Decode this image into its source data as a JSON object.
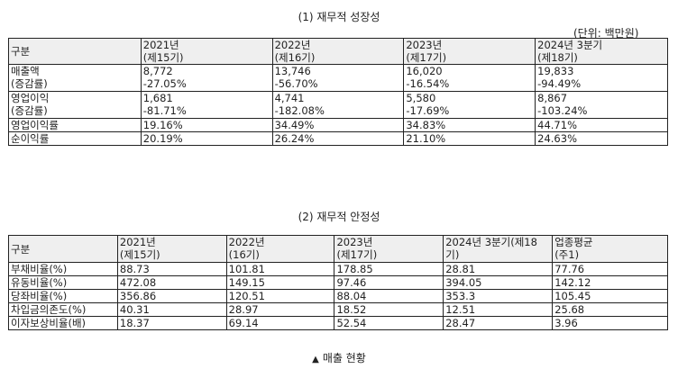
{
  "section1": {
    "title": "(1) 재무적 성장성",
    "unit": "(단위: 백만원)",
    "header": [
      "구분",
      "2021년\n(제15기)",
      "2022년\n(제16기)",
      "2023년\n(제17기)",
      "2024년 3분기\n(제18기)"
    ],
    "rows": [
      [
        "매출액\n(증감률)",
        " 8,772\n-27.05%",
        " 13,746\n-56.70%",
        " 16,020\n-16.54%",
        " 19,833\n-94.49%"
      ],
      [
        "영업이익\n(증감률)",
        " 1,681\n-81.71%",
        " 4,741\n-182.08%",
        " 5,580\n-17.69%",
        " 8,867\n-103.24%"
      ],
      [
        "영업이익률",
        "19.16%",
        "34.49%",
        "34.83%",
        "44.71%"
      ],
      [
        "순이익률",
        "20.19%",
        "26.24%",
        "21.10%",
        "24.63%"
      ]
    ]
  },
  "section2": {
    "title": "(2) 재무적 안정성",
    "header": [
      "구분",
      "2021년\n(제15기)",
      "2022년\n(16기)",
      "2023년\n(제17기)",
      "2024년 3분기(제18\n기)",
      "업종평균\n(주1)"
    ],
    "rows": [
      [
        "부채비율(%)",
        "88.73",
        "101.81",
        "178.85",
        "28.81",
        "77.76"
      ],
      [
        "유동비율(%)",
        "472.08",
        "149.15",
        "97.46",
        "394.05",
        "142.12"
      ],
      [
        "당좌비율(%)",
        "356.86",
        "120.51",
        "88.04",
        "353.3",
        "105.45"
      ],
      [
        "차입금의존도(%)",
        "40.31",
        "28.97",
        "18.52",
        "12.51",
        "25.68"
      ],
      [
        "이자보상비율(배)",
        "18.37",
        "69.14",
        "52.54",
        "28.47",
        "3.96"
      ]
    ]
  },
  "caption": {
    "icon": "triangle-up-icon",
    "text": "매출 현황"
  }
}
